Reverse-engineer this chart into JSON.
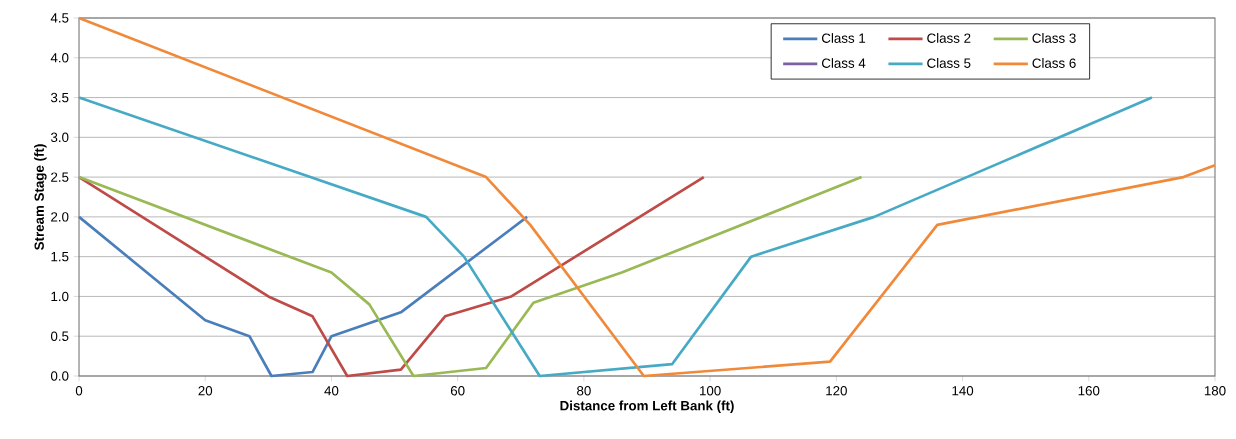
{
  "chart_data": {
    "type": "line",
    "xlabel": "Distance from Left Bank (ft)",
    "ylabel": "Stream Stage (ft)",
    "xlim": [
      0,
      180
    ],
    "xticks": [
      0,
      20,
      40,
      60,
      80,
      100,
      120,
      140,
      160,
      180
    ],
    "ylim": [
      0,
      4.5
    ],
    "yticks": [
      {
        "value": 0,
        "label": "0.0"
      },
      {
        "value": 0.5,
        "label": "0.5"
      },
      {
        "value": 1,
        "label": "1.0"
      },
      {
        "value": 1.5,
        "label": "1.5"
      },
      {
        "value": 2,
        "label": "2.0"
      },
      {
        "value": 2.5,
        "label": "2.5"
      },
      {
        "value": 3,
        "label": "3.0"
      },
      {
        "value": 3.5,
        "label": "3.5"
      },
      {
        "value": 4,
        "label": "4.0"
      },
      {
        "value": 4.5,
        "label": "4.5"
      }
    ],
    "grid": "y",
    "legend": "top right",
    "marker": "none",
    "line_style": "solid",
    "series": [
      {
        "name": "Class 1",
        "color": "#4a7ebb",
        "x": [
          0,
          20,
          27,
          30.5,
          37,
          40,
          51,
          71
        ],
        "values": [
          2.0,
          0.7,
          0.5,
          0,
          0.05,
          0.5,
          0.8,
          2.0
        ]
      },
      {
        "name": "Class 2",
        "color": "#be4b48",
        "x": [
          0,
          30,
          37,
          42.5,
          51,
          58,
          68.5,
          99
        ],
        "values": [
          2.5,
          1.0,
          0.75,
          0,
          0.08,
          0.75,
          1.0,
          2.5
        ]
      },
      {
        "name": "Class 3",
        "color": "#98b954",
        "x": [
          0,
          40,
          46,
          53,
          64.5,
          72,
          86,
          124
        ],
        "values": [
          2.5,
          1.3,
          0.9,
          0,
          0.1,
          0.92,
          1.3,
          2.5
        ]
      },
      {
        "name": "Class 4",
        "color": "#7d60a0"
      },
      {
        "name": "Class 5",
        "color": "#46aac5",
        "x": [
          0,
          55,
          61,
          73,
          94,
          106.5,
          126,
          170
        ],
        "values": [
          3.5,
          2.0,
          1.5,
          0,
          0.15,
          1.5,
          2.0,
          3.5
        ]
      },
      {
        "name": "Class 6",
        "color": "#f08a3a",
        "x": [
          0,
          64.5,
          71.5,
          89.5,
          119,
          136,
          175,
          180
        ],
        "values": [
          4.5,
          2.5,
          1.9,
          0,
          0.18,
          1.9,
          2.5,
          2.65
        ]
      }
    ]
  }
}
